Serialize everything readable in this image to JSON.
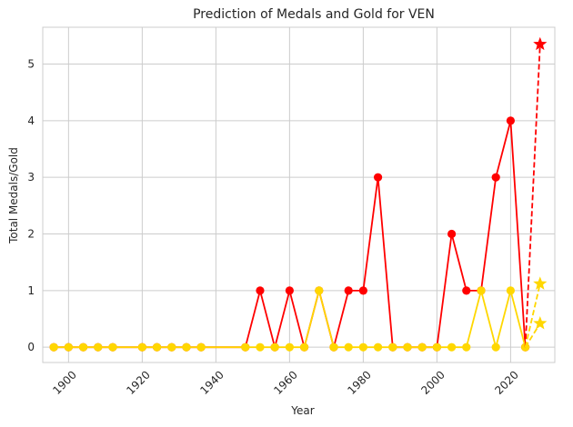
{
  "chart_data": {
    "type": "line",
    "title": "Prediction of Medals and Gold for VEN",
    "xlabel": "Year",
    "ylabel": "Total Medals/Gold",
    "xlim": [
      1893,
      2032
    ],
    "ylim": [
      -0.27,
      5.65
    ],
    "xticks": [
      1900,
      1920,
      1940,
      1960,
      1980,
      2000,
      2020
    ],
    "yticks": [
      0,
      1,
      2,
      3,
      4,
      5
    ],
    "grid": true,
    "colors": {
      "total": "#ff0000",
      "gold": "#ffd700",
      "grid": "#cccccc",
      "frame": "#cccccc"
    },
    "series": [
      {
        "key": "total",
        "x": [
          1896,
          1900,
          1904,
          1908,
          1912,
          1920,
          1924,
          1928,
          1932,
          1936,
          1948,
          1952,
          1956,
          1960,
          1964,
          1968,
          1972,
          1976,
          1980,
          1984,
          1988,
          1992,
          1996,
          2000,
          2004,
          2008,
          2012,
          2016,
          2020,
          2024
        ],
        "values": [
          0,
          0,
          0,
          0,
          0,
          0,
          0,
          0,
          0,
          0,
          0,
          1,
          0,
          1,
          0,
          1,
          0,
          1,
          1,
          3,
          0,
          0,
          0,
          0,
          2,
          1,
          1,
          3,
          4,
          0
        ]
      },
      {
        "key": "gold",
        "x": [
          1896,
          1900,
          1904,
          1908,
          1912,
          1920,
          1924,
          1928,
          1932,
          1936,
          1948,
          1952,
          1956,
          1960,
          1964,
          1968,
          1972,
          1976,
          1980,
          1984,
          1988,
          1992,
          1996,
          2000,
          2004,
          2008,
          2012,
          2016,
          2020,
          2024
        ],
        "values": [
          0,
          0,
          0,
          0,
          0,
          0,
          0,
          0,
          0,
          0,
          0,
          0,
          0,
          0,
          0,
          1,
          0,
          0,
          0,
          0,
          0,
          0,
          0,
          0,
          0,
          0,
          1,
          0,
          1,
          0
        ]
      }
    ],
    "predictions": [
      {
        "key": "total",
        "from": [
          2024,
          0
        ],
        "to": [
          2028,
          5.35
        ]
      },
      {
        "key": "gold",
        "from": [
          2024,
          0
        ],
        "to": [
          2028,
          1.12
        ]
      },
      {
        "key": "gold",
        "from": [
          2024,
          0
        ],
        "to": [
          2028,
          0.42
        ]
      }
    ]
  }
}
